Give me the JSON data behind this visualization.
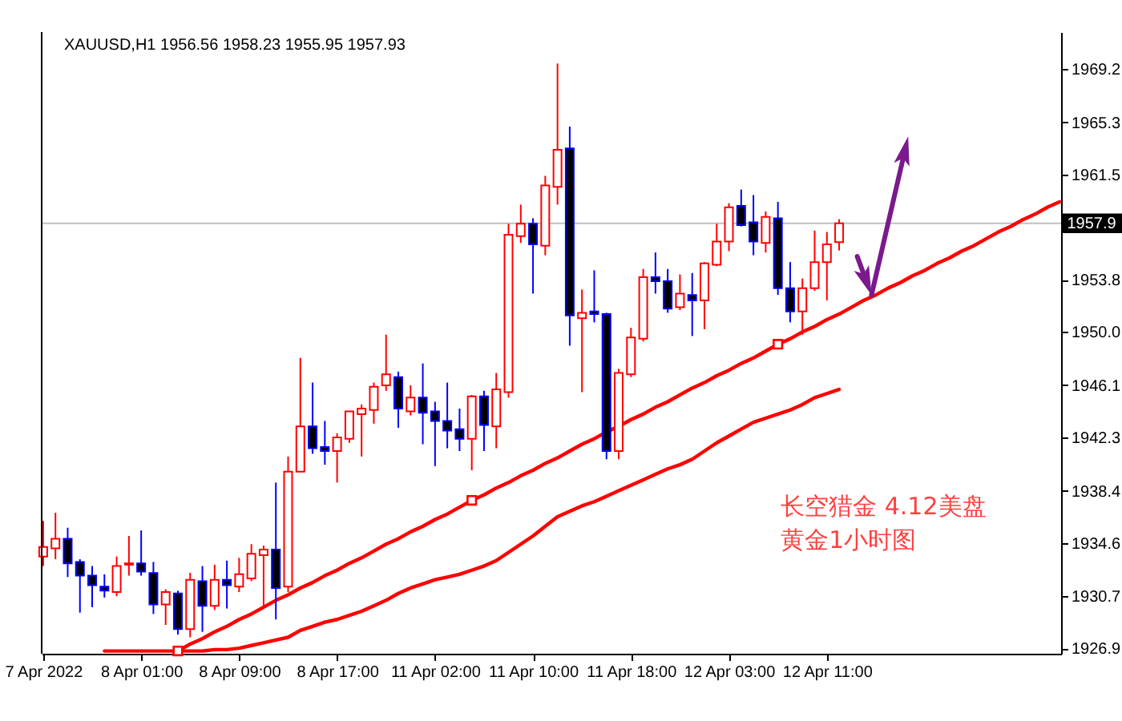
{
  "chart_data": {
    "type": "candlestick",
    "title": "XAUUSD,H1  1956.56 1958.23 1955.95 1957.93",
    "categories": [
      "7 Apr 2022",
      null,
      null,
      null,
      null,
      null,
      null,
      null,
      "8 Apr 01:00",
      null,
      null,
      null,
      null,
      null,
      null,
      null,
      "8 Apr 09:00",
      null,
      null,
      null,
      null,
      null,
      null,
      null,
      "8 Apr 17:00",
      null,
      null,
      null,
      null,
      null,
      null,
      null,
      "11 Apr 02:00",
      null,
      null,
      null,
      null,
      null,
      null,
      null,
      "11 Apr 10:00",
      null,
      null,
      null,
      null,
      null,
      null,
      null,
      "11 Apr 18:00",
      null,
      null,
      null,
      null,
      null,
      null,
      null,
      "12 Apr 03:00",
      null,
      null,
      null,
      null,
      null,
      null,
      null,
      "12 Apr 11:00",
      null,
      null,
      null,
      null,
      null,
      null,
      null,
      null,
      null,
      null,
      null,
      null,
      null,
      null,
      null,
      null,
      null,
      null,
      null
    ],
    "ohlc": [
      [
        1933.6,
        1936.2,
        1932.9,
        1934.3
      ],
      [
        1934.2,
        1936.8,
        1933.4,
        1934.9
      ],
      [
        1934.9,
        1935.7,
        1932.1,
        1933.1
      ],
      [
        1933.2,
        1933.4,
        1929.5,
        1932.2
      ],
      [
        1932.2,
        1932.9,
        1929.9,
        1931.5
      ],
      [
        1931.4,
        1932.3,
        1930.6,
        1931.1
      ],
      [
        1931.0,
        1933.6,
        1930.7,
        1932.9
      ],
      [
        1933.0,
        1935.1,
        1932.2,
        1933.1
      ],
      [
        1933.1,
        1935.5,
        1932.2,
        1932.5
      ],
      [
        1932.4,
        1933.2,
        1929.4,
        1930.1
      ],
      [
        1930.1,
        1931.2,
        1928.6,
        1931.0
      ],
      [
        1930.9,
        1931.1,
        1927.9,
        1928.3
      ],
      [
        1928.3,
        1932.4,
        1927.7,
        1931.9
      ],
      [
        1931.8,
        1932.9,
        1928.1,
        1930.0
      ],
      [
        1930.0,
        1933.0,
        1929.7,
        1931.9
      ],
      [
        1931.9,
        1933.3,
        1929.8,
        1931.5
      ],
      [
        1931.4,
        1933.5,
        1931.0,
        1932.3
      ],
      [
        1932.0,
        1934.5,
        1931.8,
        1933.8
      ],
      [
        1933.7,
        1934.4,
        1930.0,
        1934.1
      ],
      [
        1934.1,
        1939.0,
        1929.0,
        1931.3
      ],
      [
        1931.4,
        1940.9,
        1931.0,
        1939.8
      ],
      [
        1939.8,
        1948.1,
        1939.8,
        1943.1
      ],
      [
        1943.1,
        1946.3,
        1941.1,
        1941.5
      ],
      [
        1941.6,
        1943.5,
        1940.3,
        1941.3
      ],
      [
        1941.3,
        1942.6,
        1939.0,
        1942.3
      ],
      [
        1942.2,
        1944.2,
        1941.9,
        1944.2
      ],
      [
        1944.0,
        1944.7,
        1940.9,
        1944.4
      ],
      [
        1944.3,
        1946.3,
        1943.3,
        1946.0
      ],
      [
        1946.1,
        1949.8,
        1945.7,
        1946.9
      ],
      [
        1946.7,
        1947.1,
        1943.0,
        1944.4
      ],
      [
        1944.2,
        1946.1,
        1943.9,
        1945.2
      ],
      [
        1945.2,
        1947.7,
        1941.8,
        1944.1
      ],
      [
        1944.2,
        1944.9,
        1940.2,
        1943.5
      ],
      [
        1943.5,
        1946.3,
        1941.5,
        1942.8
      ],
      [
        1942.9,
        1944.4,
        1941.3,
        1942.2
      ],
      [
        1942.2,
        1945.4,
        1939.9,
        1945.3
      ],
      [
        1945.3,
        1945.7,
        1941.3,
        1943.2
      ],
      [
        1943.1,
        1947.0,
        1941.5,
        1945.8
      ],
      [
        1945.6,
        1957.9,
        1945.2,
        1957.1
      ],
      [
        1957.0,
        1959.3,
        1956.5,
        1957.9
      ],
      [
        1957.9,
        1958.3,
        1952.8,
        1956.4
      ],
      [
        1956.3,
        1961.4,
        1955.6,
        1960.7
      ],
      [
        1960.6,
        1969.6,
        1959.3,
        1963.3
      ],
      [
        1963.4,
        1965.0,
        1949.0,
        1951.2
      ],
      [
        1951.0,
        1953.1,
        1945.6,
        1951.4
      ],
      [
        1951.5,
        1954.5,
        1950.7,
        1951.3
      ],
      [
        1951.3,
        1951.4,
        1940.7,
        1941.3
      ],
      [
        1941.3,
        1947.3,
        1940.7,
        1947.0
      ],
      [
        1946.9,
        1950.3,
        1946.7,
        1949.6
      ],
      [
        1949.5,
        1954.6,
        1949.3,
        1954.0
      ],
      [
        1954.0,
        1955.8,
        1952.8,
        1953.7
      ],
      [
        1953.7,
        1954.6,
        1951.4,
        1951.7
      ],
      [
        1951.8,
        1954.2,
        1951.6,
        1952.8
      ],
      [
        1952.7,
        1954.3,
        1949.7,
        1952.3
      ],
      [
        1952.3,
        1955.1,
        1950.2,
        1955.0
      ],
      [
        1954.9,
        1957.9,
        1954.8,
        1956.6
      ],
      [
        1956.6,
        1959.4,
        1955.9,
        1959.1
      ],
      [
        1959.2,
        1960.4,
        1957.7,
        1957.8
      ],
      [
        1958.0,
        1960.0,
        1955.6,
        1956.6
      ],
      [
        1956.5,
        1958.8,
        1955.8,
        1958.4
      ],
      [
        1958.3,
        1959.5,
        1952.7,
        1953.2
      ],
      [
        1953.2,
        1955.1,
        1950.7,
        1951.5
      ],
      [
        1951.5,
        1953.9,
        1949.8,
        1953.2
      ],
      [
        1953.2,
        1957.4,
        1953.0,
        1955.1
      ],
      [
        1955.1,
        1957.3,
        1952.3,
        1956.4
      ],
      [
        1956.56,
        1958.23,
        1955.95,
        1957.93
      ],
      null,
      null,
      null,
      null,
      null,
      null,
      null,
      null,
      null,
      null,
      null,
      null,
      null,
      null,
      null,
      null,
      null,
      null
    ],
    "colors": [
      "#ff0000",
      "#ff0000",
      "#0000ff",
      "#0000ff",
      "#0000ff",
      "#0000ff",
      "#ff0000",
      "#ff0000",
      "#0000ff",
      "#0000ff",
      "#ff0000",
      "#0000ff",
      "#ff0000",
      "#0000ff",
      "#ff0000",
      "#0000ff",
      "#ff0000",
      "#ff0000",
      "#ff0000",
      "#0000ff",
      "#ff0000",
      "#ff0000",
      "#0000ff",
      "#0000ff",
      "#ff0000",
      "#ff0000",
      "#ff0000",
      "#ff0000",
      "#ff0000",
      "#0000ff",
      "#ff0000",
      "#0000ff",
      "#0000ff",
      "#0000ff",
      "#0000ff",
      "#ff0000",
      "#0000ff",
      "#ff0000",
      "#ff0000",
      "#ff0000",
      "#0000ff",
      "#ff0000",
      "#ff0000",
      "#0000ff",
      "#ff0000",
      "#0000ff",
      "#0000ff",
      "#ff0000",
      "#ff0000",
      "#ff0000",
      "#0000ff",
      "#0000ff",
      "#ff0000",
      "#0000ff",
      "#ff0000",
      "#ff0000",
      "#ff0000",
      "#0000ff",
      "#0000ff",
      "#ff0000",
      "#0000ff",
      "#0000ff",
      "#ff0000",
      "#ff0000",
      "#ff0000",
      "#ff0000",
      null,
      null,
      null,
      null,
      null,
      null,
      null,
      null,
      null,
      null,
      null,
      null,
      null,
      null,
      null,
      null,
      null,
      null
    ],
    "series": [
      {
        "type": "line",
        "color": "#ff0000",
        "values": [
          null,
          null,
          null,
          null,
          null,
          1926.7,
          1926.7,
          1926.7,
          1926.7,
          1926.7,
          1926.7,
          1926.7,
          1926.7,
          1926.7,
          1926.8,
          1926.8,
          1926.9,
          1927.1,
          1927.3,
          1927.5,
          1927.7,
          1928.2,
          1928.5,
          1928.8,
          1929.0,
          1929.3,
          1929.6,
          1930.0,
          1930.4,
          1930.9,
          1931.3,
          1931.6,
          1931.9,
          1932.1,
          1932.3,
          1932.6,
          1932.9,
          1933.3,
          1933.9,
          1934.5,
          1935.1,
          1935.8,
          1936.5,
          1936.9,
          1937.3,
          1937.6,
          1938.0,
          1938.4,
          1938.8,
          1939.2,
          1939.6,
          1940.0,
          1940.3,
          1940.7,
          1941.3,
          1941.9,
          1942.4,
          1942.9,
          1943.4,
          1943.7,
          1944.0,
          1944.3,
          1944.7,
          1945.2,
          1945.5,
          1945.8,
          null,
          null,
          null,
          null,
          null,
          null,
          null,
          null,
          null,
          null,
          null,
          null,
          null,
          null,
          null,
          null,
          null,
          null
        ]
      },
      {
        "type": "line",
        "color": "#ff0000",
        "values": [
          null,
          null,
          null,
          null,
          null,
          null,
          null,
          null,
          null,
          null,
          null,
          1926.7,
          1927.2,
          1927.6,
          1928.1,
          1928.5,
          1929.0,
          1929.4,
          1929.9,
          1930.4,
          1930.8,
          1931.3,
          1931.7,
          1932.2,
          1932.6,
          1933.1,
          1933.5,
          1934.0,
          1934.5,
          1934.9,
          1935.4,
          1935.8,
          1936.3,
          1936.7,
          1937.2,
          1937.7,
          1938.1,
          1938.6,
          1939.0,
          1939.5,
          1939.9,
          1940.4,
          1940.8,
          1941.3,
          1941.8,
          1942.2,
          1942.7,
          1943.1,
          1943.6,
          1944.0,
          1944.5,
          1944.9,
          1945.4,
          1945.9,
          1946.3,
          1946.8,
          1947.2,
          1947.7,
          1948.1,
          1948.6,
          1949.1,
          1949.5,
          1950.0,
          1950.4,
          1950.9,
          1951.3,
          1951.8,
          1952.3,
          1952.7,
          1953.2,
          1953.6,
          1954.1,
          1954.5,
          1955.0,
          1955.4,
          1955.9,
          1956.3,
          1956.8,
          1957.3,
          1957.7,
          1958.2,
          1958.6,
          1959.1,
          1959.5
        ]
      },
      {
        "type": "scatter",
        "color": "#ff0000",
        "marker": "square",
        "values": [
          null,
          null,
          null,
          null,
          null,
          null,
          null,
          null,
          null,
          null,
          null,
          1926.7,
          null,
          null,
          null,
          null,
          null,
          null,
          null,
          null,
          null,
          null,
          null,
          null,
          null,
          null,
          null,
          null,
          null,
          null,
          null,
          null,
          null,
          null,
          null,
          1937.7,
          null,
          null,
          null,
          null,
          null,
          null,
          null,
          null,
          null,
          null,
          null,
          null,
          null,
          null,
          null,
          null,
          null,
          null,
          null,
          null,
          null,
          null,
          null,
          null,
          1949.1,
          null,
          null,
          null,
          null,
          null,
          null,
          null,
          null,
          null,
          null,
          null,
          null,
          null,
          null,
          null,
          null,
          null,
          null,
          null,
          null,
          null,
          null,
          null
        ]
      }
    ],
    "ylim": [
      1926.5,
      1971.9
    ],
    "yticks": [
      1926.9,
      1930.7,
      1934.6,
      1938.4,
      1942.3,
      1946.1,
      {
        "value": 1950.0,
        "label": "1950.0"
      },
      1953.8,
      1961.5,
      1965.3,
      1969.2
    ],
    "ref_lines": [
      {
        "axis": "y",
        "value": 1957.93,
        "label": "1957.9",
        "color": "#c0c0c0"
      }
    ],
    "annotations": [
      "长空猎金  4.12美盘",
      "黄金1小时图"
    ],
    "grid": false
  }
}
